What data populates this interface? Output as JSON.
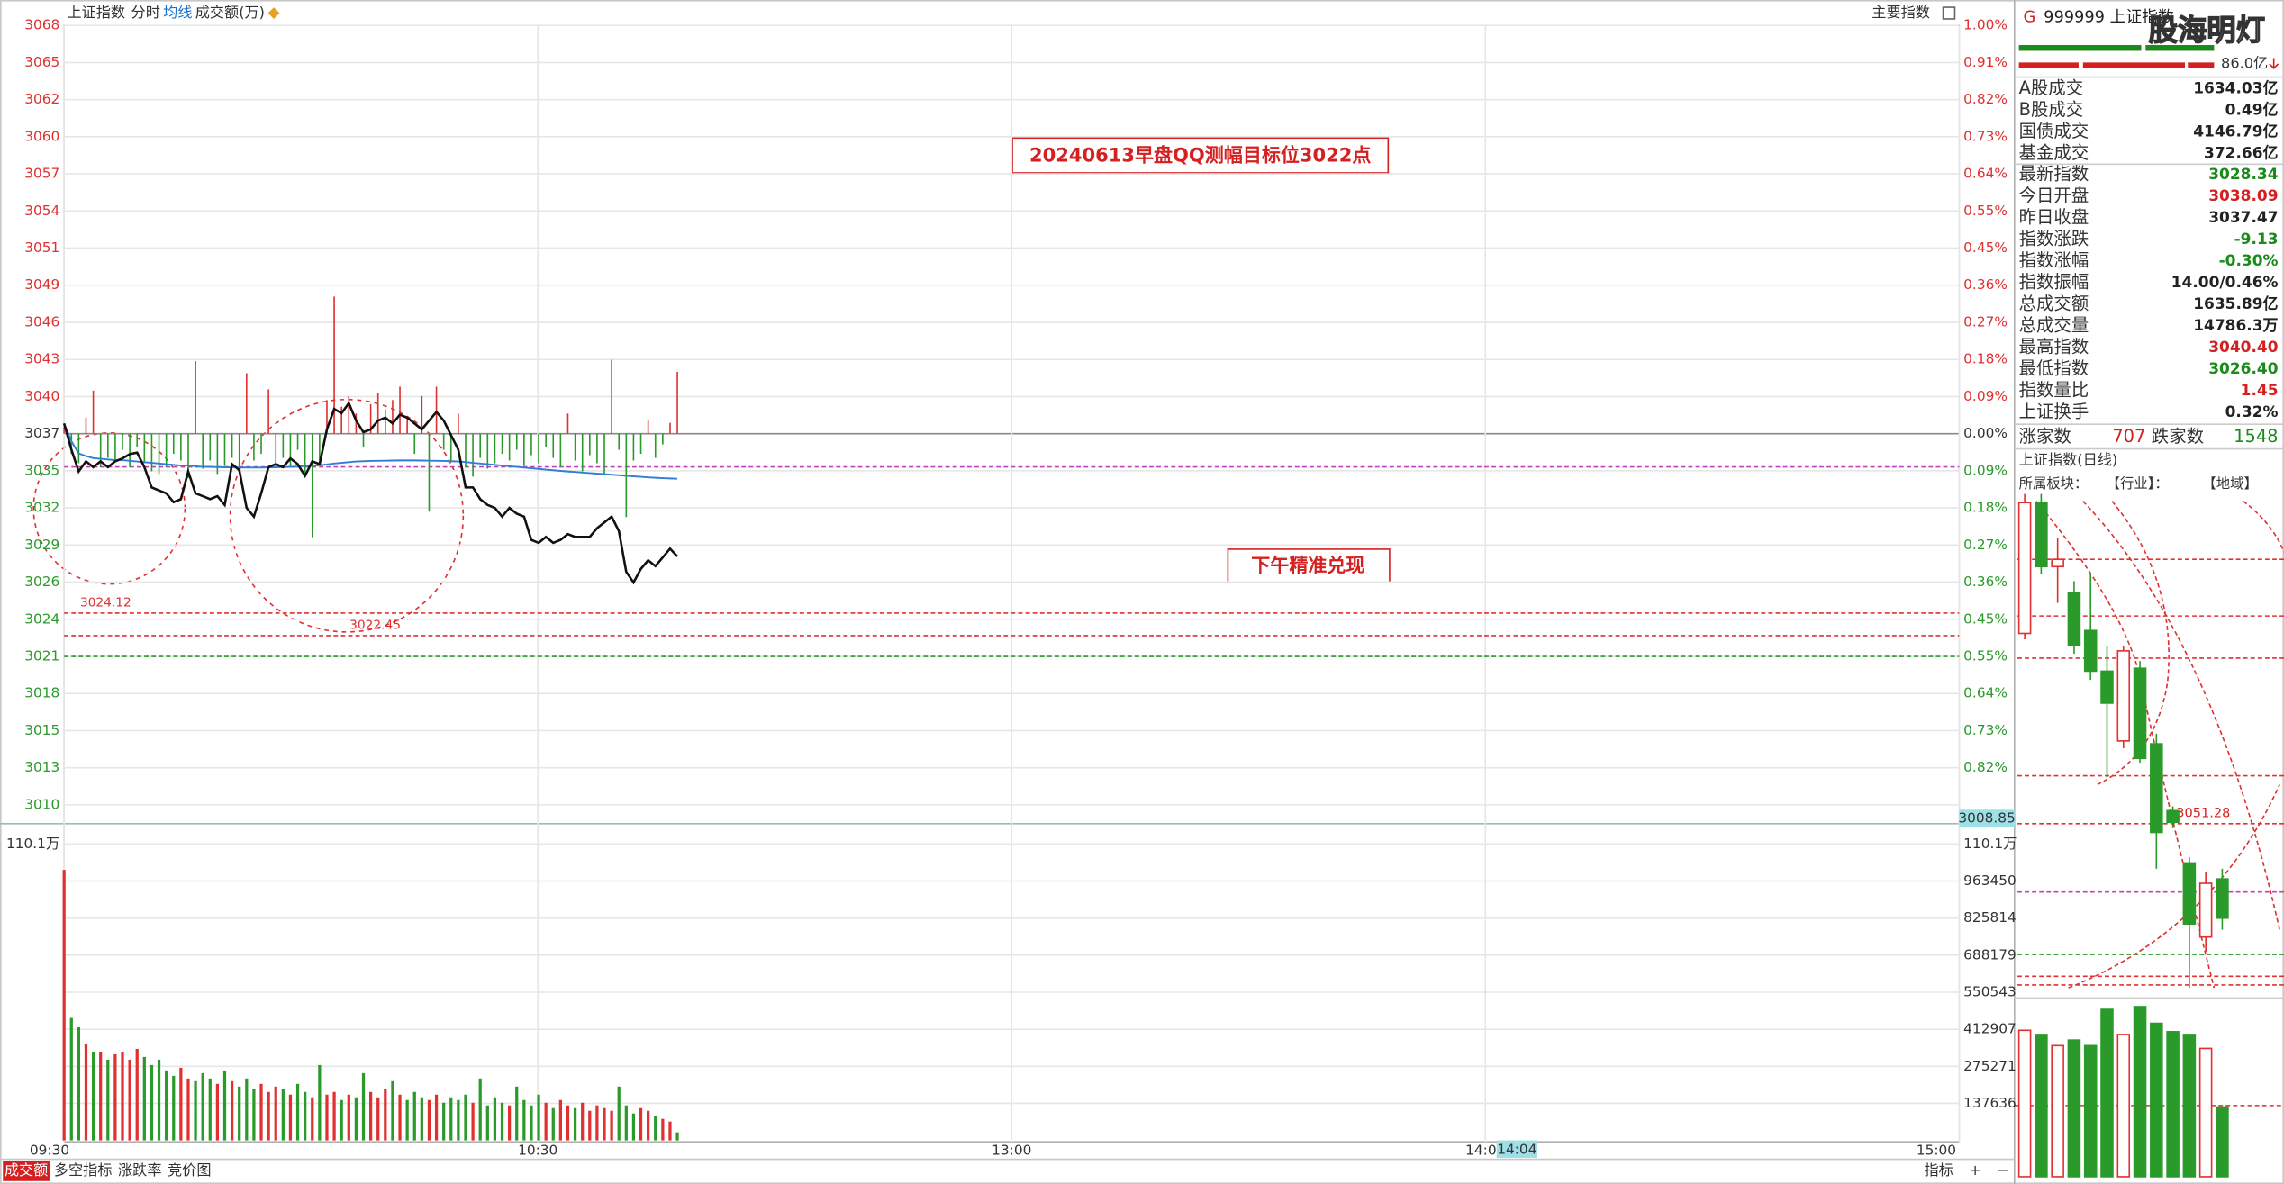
{
  "toolbar": {
    "title": "上证指数",
    "tabs": [
      "分时",
      "均线",
      "成交额(万)"
    ],
    "right": "主要指数"
  },
  "intraday": {
    "prev_close": 3037.47,
    "price_ticks": [
      {
        "value": 3067.84,
        "label": "3068",
        "pct": "1.00%"
      },
      {
        "value": 3065.08,
        "label": "3065",
        "pct": "0.91%"
      },
      {
        "value": 3062.32,
        "label": "3062",
        "pct": "0.82%"
      },
      {
        "value": 3059.56,
        "label": "3060",
        "pct": "0.73%"
      },
      {
        "value": 3056.8,
        "label": "3057",
        "pct": "0.64%"
      },
      {
        "value": 3054.04,
        "label": "3054",
        "pct": "0.55%"
      },
      {
        "value": 3051.28,
        "label": "3051",
        "pct": "0.45%"
      },
      {
        "value": 3048.52,
        "label": "3049",
        "pct": "0.36%"
      },
      {
        "value": 3045.75,
        "label": "3046",
        "pct": "0.27%"
      },
      {
        "value": 3042.99,
        "label": "3043",
        "pct": "0.18%"
      },
      {
        "value": 3040.23,
        "label": "3040",
        "pct": "0.09%"
      },
      {
        "value": 3037.47,
        "label": "3037",
        "pct": "0.00%"
      },
      {
        "value": 3034.71,
        "label": "3035",
        "pct": "0.09%"
      },
      {
        "value": 3031.95,
        "label": "3032",
        "pct": "0.18%"
      },
      {
        "value": 3029.19,
        "label": "3029",
        "pct": "0.27%"
      },
      {
        "value": 3026.43,
        "label": "3026",
        "pct": "0.36%"
      },
      {
        "value": 3023.66,
        "label": "3024",
        "pct": "0.45%"
      },
      {
        "value": 3020.9,
        "label": "3021",
        "pct": "0.55%"
      },
      {
        "value": 3018.14,
        "label": "3018",
        "pct": "0.64%"
      },
      {
        "value": 3015.38,
        "label": "3015",
        "pct": "0.73%"
      },
      {
        "value": 3012.62,
        "label": "3013",
        "pct": "0.82%"
      },
      {
        "value": 3009.86,
        "label": "3010"
      }
    ],
    "price": [
      3038.23,
      3036.28,
      3034.66,
      3035.41,
      3034.98,
      3035.41,
      3034.98,
      3035.41,
      3035.63,
      3035.95,
      3036.06,
      3034.98,
      3033.47,
      3033.25,
      3033.03,
      3032.38,
      3032.6,
      3034.66,
      3033.03,
      3032.82,
      3032.6,
      3032.82,
      3032.17,
      3035.2,
      3034.76,
      3031.95,
      3031.3,
      3033.03,
      3034.98,
      3035.2,
      3034.98,
      3035.63,
      3035.2,
      3034.33,
      3035.41,
      3035.2,
      3037.79,
      3039.31,
      3038.99,
      3039.74,
      3038.44,
      3037.58,
      3037.79,
      3038.44,
      3038.66,
      3038.23,
      3038.88,
      3038.66,
      3038.23,
      3037.79,
      3038.44,
      3039.09,
      3038.44,
      3037.36,
      3036.28,
      3033.47,
      3033.47,
      3032.6,
      3032.17,
      3031.95,
      3031.3,
      3031.95,
      3031.52,
      3031.3,
      3029.57,
      3029.35,
      3029.79,
      3029.35,
      3029.57,
      3030.0,
      3029.79,
      3029.79,
      3029.79,
      3030.44,
      3030.87,
      3031.3,
      3030.22,
      3027.19,
      3026.4,
      3027.41,
      3028.05,
      3027.62,
      3028.27,
      3028.92,
      3028.34
    ],
    "avg": [
      3038.23,
      3036.9,
      3036.0,
      3035.8,
      3035.65,
      3035.6,
      3035.55,
      3035.5,
      3035.5,
      3035.45,
      3035.4,
      3035.35,
      3035.3,
      3035.25,
      3035.2,
      3035.15,
      3035.1,
      3035.1,
      3035.05,
      3035.0,
      3035.0,
      3034.98,
      3034.97,
      3034.96,
      3034.96,
      3034.95,
      3034.95,
      3034.95,
      3034.96,
      3034.97,
      3034.98,
      3035.0,
      3035.02,
      3035.05,
      3035.08,
      3035.12,
      3035.18,
      3035.25,
      3035.3,
      3035.35,
      3035.4,
      3035.42,
      3035.44,
      3035.45,
      3035.46,
      3035.47,
      3035.48,
      3035.48,
      3035.48,
      3035.47,
      3035.46,
      3035.45,
      3035.44,
      3035.42,
      3035.4,
      3035.36,
      3035.3,
      3035.25,
      3035.2,
      3035.15,
      3035.1,
      3035.05,
      3035.0,
      3034.95,
      3034.9,
      3034.85,
      3034.8,
      3034.75,
      3034.7,
      3034.66,
      3034.62,
      3034.58,
      3034.54,
      3034.5,
      3034.46,
      3034.42,
      3034.38,
      3034.34,
      3034.3,
      3034.26,
      3034.22,
      3034.19,
      3034.16,
      3034.14,
      3034.12
    ],
    "lead": [
      0.5,
      -1.5,
      -2.2,
      1.2,
      3.2,
      -2.5,
      -1.8,
      -2.0,
      -1.2,
      -2.5,
      -1.0,
      -2.2,
      -2.8,
      -3.0,
      -2.5,
      -1.5,
      -2.0,
      -3.3,
      5.4,
      -2.6,
      -2.0,
      -3.0,
      -2.4,
      -1.8,
      -2.8,
      4.5,
      -2.0,
      -1.5,
      3.3,
      -2.2,
      -1.8,
      -2.5,
      -1.2,
      -3.0,
      -7.7,
      -2.0,
      2.5,
      10.2,
      2.0,
      2.8,
      1.5,
      -1.0,
      2.2,
      3.0,
      1.8,
      2.5,
      3.5,
      1.2,
      -1.5,
      2.8,
      -5.8,
      3.5,
      -1.2,
      -2.0,
      1.5,
      -2.5,
      -3.2,
      -1.8,
      -2.6,
      -2.2,
      -1.5,
      -2.0,
      -1.2,
      -2.4,
      -1.6,
      -2.2,
      -1.0,
      -1.8,
      -2.5,
      1.5,
      -2.0,
      -2.8,
      -1.6,
      -2.2,
      -3.0,
      5.5,
      -1.2,
      -6.2,
      -2.0,
      -1.5,
      1.0,
      -1.8,
      -0.8,
      0.8,
      4.6
    ],
    "levels": [
      {
        "value": 3024.12,
        "label": "3024.12"
      },
      {
        "value": 3022.45,
        "label": "3022.45"
      }
    ],
    "guides": [
      {
        "value": 3020.9,
        "color": "#2a9a2a"
      },
      {
        "value": 3035.0,
        "color": "#c040c0"
      }
    ],
    "volume": {
      "ticks": [
        {
          "value": 1101000,
          "label": "110.1万"
        },
        963450,
        825814,
        688179,
        550543,
        412907,
        275271,
        137636
      ],
      "values": [
        1005000,
        455000,
        420000,
        360000,
        330000,
        330000,
        300000,
        320000,
        330000,
        300000,
        340000,
        310000,
        280000,
        300000,
        260000,
        240000,
        270000,
        230000,
        220000,
        250000,
        230000,
        210000,
        260000,
        220000,
        200000,
        230000,
        190000,
        210000,
        180000,
        200000,
        190000,
        170000,
        210000,
        180000,
        160000,
        280000,
        170000,
        180000,
        150000,
        170000,
        160000,
        250000,
        180000,
        160000,
        190000,
        220000,
        170000,
        150000,
        180000,
        160000,
        150000,
        170000,
        140000,
        160000,
        150000,
        170000,
        140000,
        230000,
        130000,
        160000,
        140000,
        130000,
        200000,
        150000,
        130000,
        170000,
        140000,
        120000,
        150000,
        130000,
        120000,
        140000,
        110000,
        130000,
        120000,
        110000,
        200000,
        130000,
        100000,
        120000,
        110000,
        90000,
        80000,
        70000,
        30000
      ]
    },
    "time_ticks": [
      "09:30",
      "10:30",
      "13:00",
      "14:00",
      "15:00"
    ],
    "cursor": {
      "time": "14:04",
      "price": 3008.85
    },
    "annotations": [
      "20240613早盘QQ测幅目标位3022点",
      "下午精准兑现"
    ]
  },
  "bottom_tabs": [
    "成交额",
    "多空指标",
    "涨跌率",
    "竞价图"
  ],
  "bottom_right": [
    "指标",
    "+",
    "−"
  ],
  "quote": {
    "flag": "G",
    "code": "999999 上证指数",
    "watermark": "股海明灯",
    "amount": "86.0亿",
    "rows": [
      {
        "label": "A股成交",
        "value": "1634.03亿",
        "color": "#222"
      },
      {
        "label": "B股成交",
        "value": "0.49亿",
        "color": "#222"
      },
      {
        "label": "国债成交",
        "value": "4146.79亿",
        "color": "#222"
      },
      {
        "label": "基金成交",
        "value": "372.66亿",
        "color": "#222"
      },
      {
        "label": "最新指数",
        "value": "3028.34",
        "color": "#1a8a1a"
      },
      {
        "label": "今日开盘",
        "value": "3038.09",
        "color": "#d42020"
      },
      {
        "label": "昨日收盘",
        "value": "3037.47",
        "color": "#222"
      },
      {
        "label": "指数涨跌",
        "value": "-9.13",
        "color": "#1a8a1a"
      },
      {
        "label": "指数涨幅",
        "value": "-0.30%",
        "color": "#1a8a1a"
      },
      {
        "label": "指数振幅",
        "value": "14.00/0.46%",
        "color": "#222"
      },
      {
        "label": "总成交额",
        "value": "1635.89亿",
        "color": "#222"
      },
      {
        "label": "总成交量",
        "value": "14786.3万",
        "color": "#222"
      },
      {
        "label": "最高指数",
        "value": "3040.40",
        "color": "#d42020"
      },
      {
        "label": "最低指数",
        "value": "3026.40",
        "color": "#1a8a1a"
      },
      {
        "label": "指数量比",
        "value": "1.45",
        "color": "#d42020"
      },
      {
        "label": "上证换手",
        "value": "0.32%",
        "color": "#222"
      }
    ],
    "breadth": {
      "up_label": "涨家数",
      "up": 707,
      "down_label": "跌家数",
      "down": 1548
    }
  },
  "daily": {
    "title": "上证指数(日线)",
    "sector_labels": [
      "所属板块：",
      "【行业】：",
      "【地域】"
    ],
    "marker": "3051.28",
    "ylim": [
      3000,
      3150
    ],
    "candles": [
      {
        "open": 3108.26,
        "close": 3147.39,
        "high": 3150.0,
        "low": 3106.52
      },
      {
        "open": 3147.39,
        "close": 3128.26,
        "high": 3150.0,
        "low": 3126.09
      },
      {
        "open": 3128.26,
        "close": 3130.43,
        "high": 3136.96,
        "low": 3117.39
      },
      {
        "open": 3120.43,
        "close": 3104.78,
        "high": 3123.91,
        "low": 3102.17
      },
      {
        "open": 3109.13,
        "close": 3096.96,
        "high": 3126.09,
        "low": 3094.35
      },
      {
        "open": 3096.96,
        "close": 3087.39,
        "high": 3104.35,
        "low": 3065.22
      },
      {
        "open": 3076.09,
        "close": 3103.04,
        "high": 3104.35,
        "low": 3073.91
      },
      {
        "open": 3097.83,
        "close": 3070.87,
        "high": 3100.0,
        "low": 3069.57
      },
      {
        "open": 3075.22,
        "close": 3048.7,
        "high": 3078.26,
        "low": 3037.83
      },
      {
        "open": 3055.22,
        "close": 3051.74,
        "high": 3056.52,
        "low": 3050.0
      },
      {
        "open": 3039.57,
        "close": 3021.3,
        "high": 3041.3,
        "low": 3002.17
      },
      {
        "open": 3017.39,
        "close": 3033.48,
        "high": 3036.96,
        "low": 3013.04
      },
      {
        "open": 3034.78,
        "close": 3023.04,
        "high": 3037.83,
        "low": 3019.57
      }
    ],
    "volume_ylim": [
      0,
      125
    ],
    "volume": [
      105,
      102,
      94,
      98,
      94,
      120,
      102,
      122,
      110,
      104,
      102,
      92,
      50
    ]
  }
}
